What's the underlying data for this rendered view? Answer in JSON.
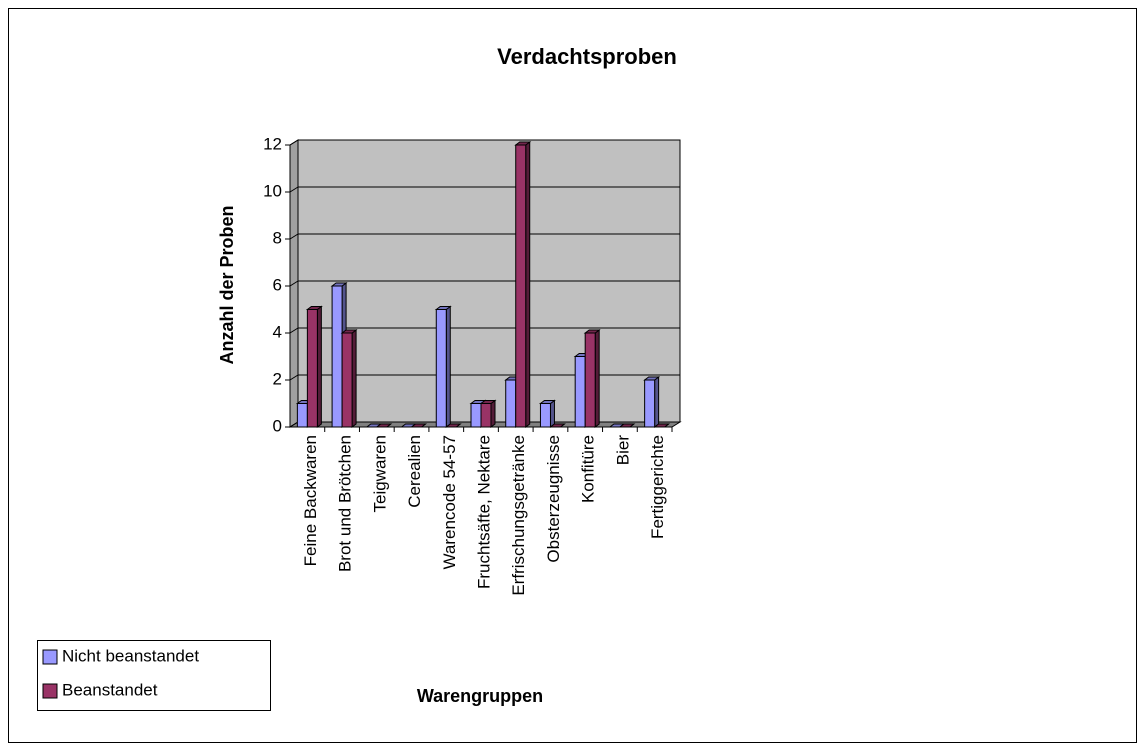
{
  "chart_data": {
    "type": "bar",
    "title": "Verdachtsproben",
    "xlabel": "Warengruppen",
    "ylabel": "Anzahl der Proben",
    "categories": [
      "Feine Backwaren",
      "Brot und Brötchen",
      "Teigwaren",
      "Cerealien",
      "Warencode 54-57",
      "Fruchtsäfte, Nektare",
      "Erfrischungsgetränke",
      "Obsterzeugnisse",
      "Konfitüre",
      "Bier",
      "Fertiggerichte"
    ],
    "series": [
      {
        "name": "Nicht beanstandet",
        "color": "#9999ff",
        "values": [
          1,
          6,
          0,
          0,
          5,
          1,
          2,
          1,
          3,
          0,
          2
        ]
      },
      {
        "name": "Beanstandet",
        "color": "#993366",
        "values": [
          5,
          4,
          0,
          0,
          0,
          1,
          12,
          0,
          4,
          0,
          0
        ]
      }
    ],
    "ylim": [
      0,
      12
    ],
    "yticks": [
      0,
      2,
      4,
      6,
      8,
      10,
      12
    ],
    "grid": true,
    "legend": "bottom-left"
  }
}
